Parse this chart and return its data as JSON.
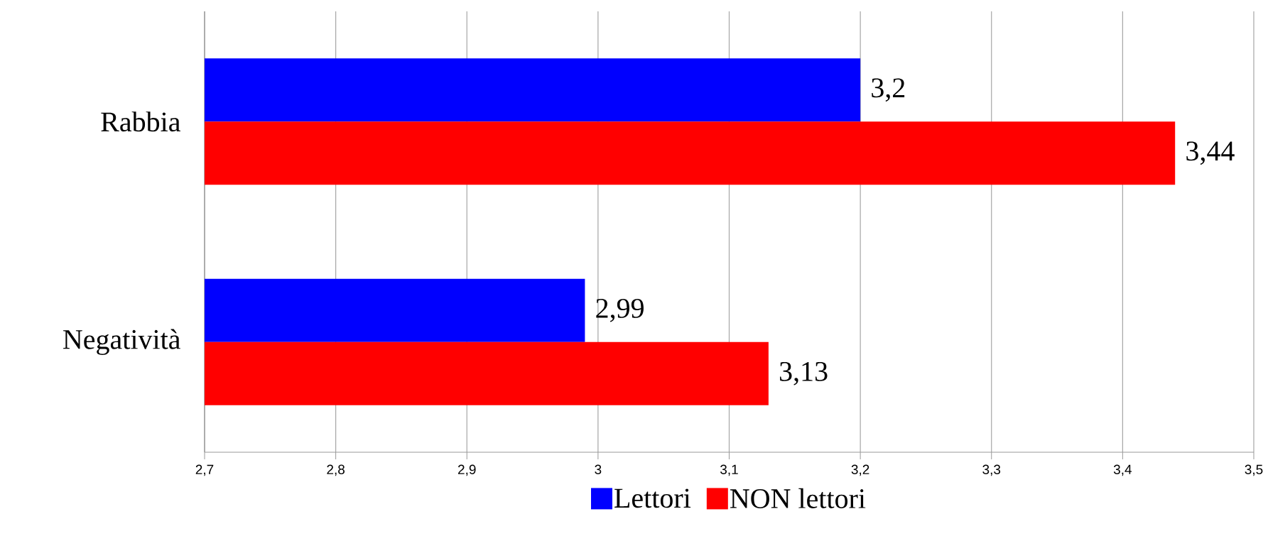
{
  "chart_data": {
    "type": "bar",
    "orientation": "horizontal",
    "categories": [
      "Rabbia",
      "Negatività"
    ],
    "series": [
      {
        "name": "Lettori",
        "color": "#0000ff",
        "values": [
          3.2,
          2.99
        ],
        "value_labels": [
          "3,2",
          "2,99"
        ]
      },
      {
        "name": "NON lettori",
        "color": "#ff0000",
        "values": [
          3.44,
          3.13
        ],
        "value_labels": [
          "3,44",
          "3,13"
        ]
      }
    ],
    "xlim": [
      2.7,
      3.5
    ],
    "xticks": [
      {
        "value": 2.7,
        "label": "2,7"
      },
      {
        "value": 2.8,
        "label": "2,8"
      },
      {
        "value": 2.9,
        "label": "2,9"
      },
      3,
      {
        "value": 3.1,
        "label": "3,1"
      },
      {
        "value": 3.2,
        "label": "3,2"
      },
      {
        "value": 3.3,
        "label": "3,3"
      },
      {
        "value": 3.4,
        "label": "3,4"
      },
      {
        "value": 3.5,
        "label": "3,5"
      }
    ],
    "grid": "x",
    "legend": "bottom"
  }
}
